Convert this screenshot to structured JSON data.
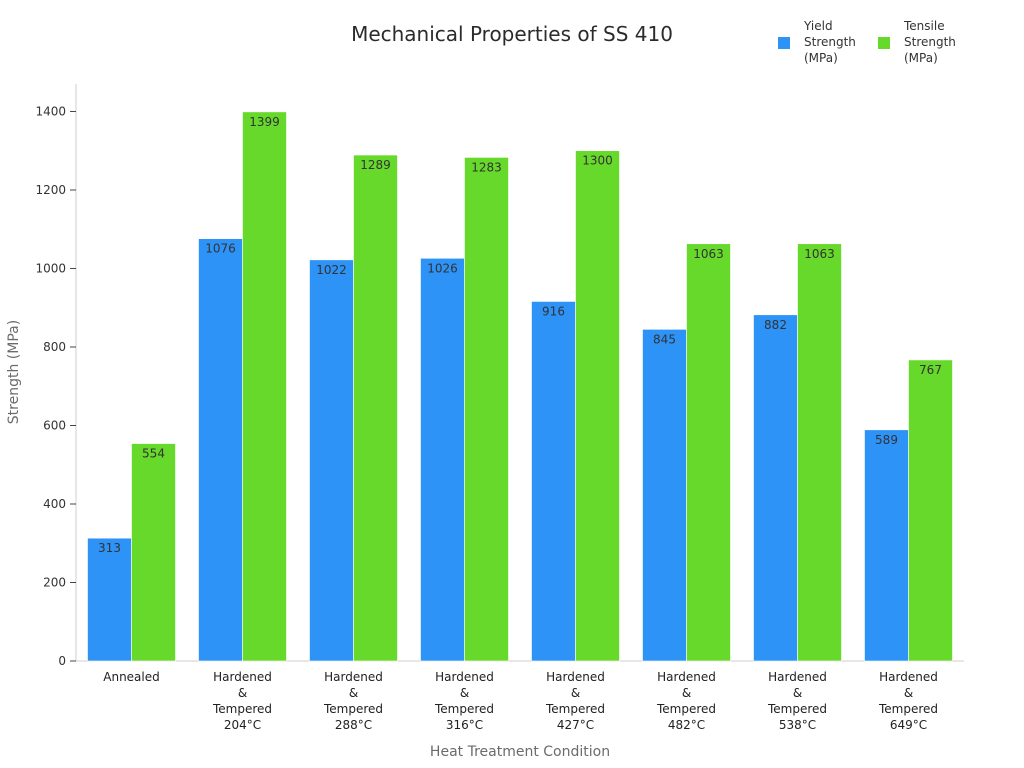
{
  "chart_data": {
    "type": "bar",
    "title": "Mechanical Properties of SS 410",
    "xlabel": "Heat Treatment Condition",
    "ylabel": "Strength (MPa)",
    "ylim": [
      0,
      1470
    ],
    "yticks": [
      0,
      200,
      400,
      600,
      800,
      1000,
      1200,
      1400
    ],
    "categories": [
      [
        "Annealed"
      ],
      [
        "Hardened",
        "&",
        "Tempered",
        "204°C"
      ],
      [
        "Hardened",
        "&",
        "Tempered",
        "288°C"
      ],
      [
        "Hardened",
        "&",
        "Tempered",
        "316°C"
      ],
      [
        "Hardened",
        "&",
        "Tempered",
        "427°C"
      ],
      [
        "Hardened",
        "&",
        "Tempered",
        "482°C"
      ],
      [
        "Hardened",
        "&",
        "Tempered",
        "538°C"
      ],
      [
        "Hardened",
        "&",
        "Tempered",
        "649°C"
      ]
    ],
    "series": [
      {
        "name": [
          "Yield",
          "Strength",
          "(MPa)"
        ],
        "color": "#2e93f7",
        "values": [
          313,
          1076,
          1022,
          1026,
          916,
          845,
          882,
          589
        ]
      },
      {
        "name": [
          "Tensile",
          "Strength",
          "(MPa)"
        ],
        "color": "#66d92a",
        "values": [
          554,
          1399,
          1289,
          1283,
          1300,
          1063,
          1063,
          767
        ]
      }
    ],
    "grid": false,
    "legend_position": "top-right",
    "data_labels": true
  }
}
